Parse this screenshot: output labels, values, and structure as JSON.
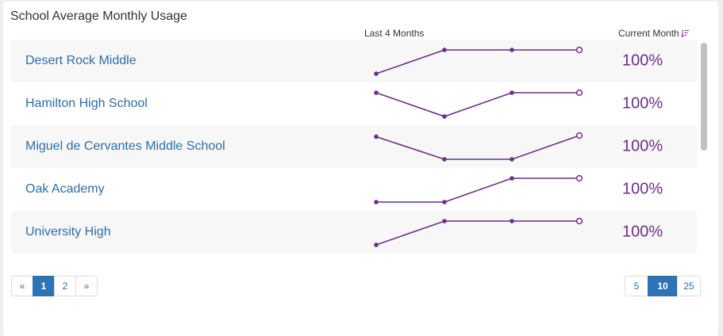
{
  "title": "School Average Monthly Usage",
  "columns": {
    "spark": "Last 4 Months",
    "current": "Current Month",
    "sort_icon": "sort-descending-icon"
  },
  "colors": {
    "accent": "#6b2f87",
    "link": "#2e6ea5",
    "active_page": "#2e73b4"
  },
  "rows": [
    {
      "school": "Desert Rock Middle",
      "current": "100%",
      "trend": [
        0.0,
        1.0,
        1.0,
        1.0
      ]
    },
    {
      "school": "Hamilton High School",
      "current": "100%",
      "trend": [
        1.0,
        0.0,
        1.0,
        1.0
      ]
    },
    {
      "school": "Miguel de Cervantes Middle School",
      "current": "100%",
      "trend": [
        0.95,
        0.0,
        0.0,
        1.0
      ]
    },
    {
      "school": "Oak Academy",
      "current": "100%",
      "trend": [
        0.0,
        0.0,
        1.0,
        1.0
      ]
    },
    {
      "school": "University High",
      "current": "100%",
      "trend": [
        0.0,
        1.0,
        1.0,
        1.0
      ]
    }
  ],
  "pagination": {
    "prev": "«",
    "pages": [
      "1",
      "2"
    ],
    "next": "»",
    "current_page": "1"
  },
  "page_sizes": {
    "options": [
      "5",
      "10",
      "25"
    ],
    "selected": "10"
  }
}
